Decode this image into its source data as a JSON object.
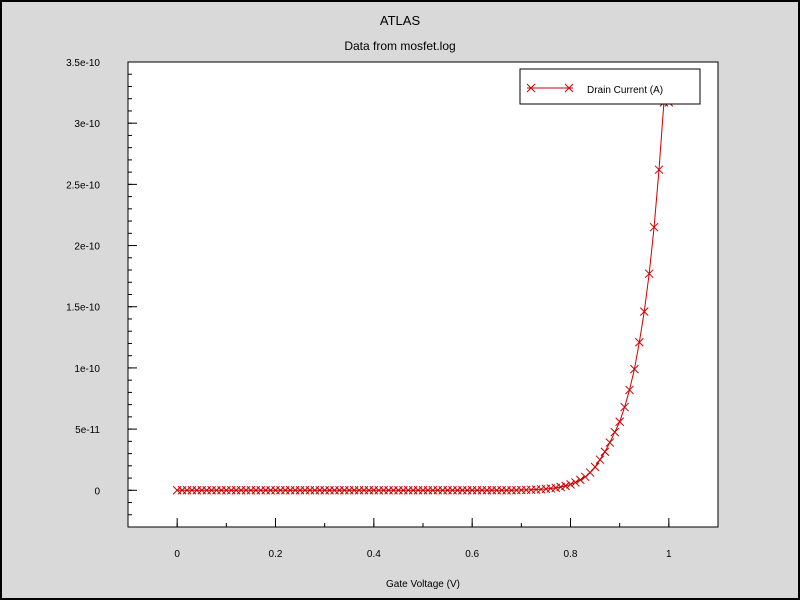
{
  "chart_data": {
    "type": "line",
    "title": "ATLAS",
    "subtitle": "Data from mosfet.log",
    "xlabel": "Gate Voltage (V)",
    "ylabel": "",
    "xlim": [
      -0.1,
      1.1
    ],
    "ylim": [
      -3e-11,
      3.5e-10
    ],
    "x_ticks": [
      0,
      0.2,
      0.4,
      0.6,
      0.8,
      1
    ],
    "x_tick_labels": [
      "0",
      "0.2",
      "0.4",
      "0.6",
      "0.8",
      "1"
    ],
    "y_ticks": [
      0,
      5e-11,
      1e-10,
      1.5e-10,
      2e-10,
      2.5e-10,
      3e-10,
      3.5e-10
    ],
    "y_tick_labels": [
      "0",
      "5e-11",
      "1e-10",
      "1.5e-10",
      "2e-10",
      "2.5e-10",
      "3e-10",
      "3.5e-10"
    ],
    "grid": false,
    "legend_position": "top-right",
    "series": [
      {
        "name": "Drain Current (A)",
        "color": "#cc0000",
        "marker": "x",
        "x": [
          0,
          0.01,
          0.02,
          0.03,
          0.04,
          0.05,
          0.06,
          0.07,
          0.08,
          0.09,
          0.1,
          0.11,
          0.12,
          0.13,
          0.14,
          0.15,
          0.16,
          0.17,
          0.18,
          0.19,
          0.2,
          0.21,
          0.22,
          0.23,
          0.24,
          0.25,
          0.26,
          0.27,
          0.28,
          0.29,
          0.3,
          0.31,
          0.32,
          0.33,
          0.34,
          0.35,
          0.36,
          0.37,
          0.38,
          0.39,
          0.4,
          0.41,
          0.42,
          0.43,
          0.44,
          0.45,
          0.46,
          0.47,
          0.48,
          0.49,
          0.5,
          0.51,
          0.52,
          0.53,
          0.54,
          0.55,
          0.56,
          0.57,
          0.58,
          0.59,
          0.6,
          0.61,
          0.62,
          0.63,
          0.64,
          0.65,
          0.66,
          0.67,
          0.68,
          0.69,
          0.7,
          0.71,
          0.72,
          0.73,
          0.74,
          0.75,
          0.76,
          0.77,
          0.78,
          0.79,
          0.8,
          0.81,
          0.82,
          0.83,
          0.84,
          0.85,
          0.86,
          0.87,
          0.88,
          0.89,
          0.9,
          0.91,
          0.92,
          0.93,
          0.94,
          0.95,
          0.96,
          0.97,
          0.98,
          0.99,
          1
        ],
        "y": [
          0,
          0,
          0,
          0,
          0,
          0,
          0,
          0,
          0,
          0,
          0,
          0,
          0,
          0,
          0,
          0,
          0,
          0,
          0,
          0,
          0,
          0,
          0,
          0,
          0,
          0,
          0,
          0,
          0,
          0,
          0,
          0,
          0,
          0,
          0,
          0,
          0,
          0,
          0,
          0,
          0,
          0,
          0,
          0,
          0,
          0,
          0,
          0,
          0,
          0,
          0,
          0,
          0,
          0,
          0,
          0,
          0,
          0,
          0,
          0,
          0,
          0,
          0,
          0,
          0,
          0,
          0,
          0,
          0,
          1e-13,
          2e-13,
          3e-13,
          4e-13,
          6e-13,
          8e-13,
          1.1e-12,
          1.5e-12,
          2e-12,
          2.7e-12,
          3.6e-12,
          4.8e-12,
          6.4e-12,
          8.5e-12,
          1.1e-11,
          1.45e-11,
          1.9e-11,
          2.5e-11,
          3.15e-11,
          3.9e-11,
          4.75e-11,
          5.6e-11,
          6.8e-11,
          8.2e-11,
          9.9e-11,
          1.21e-10,
          1.46e-10,
          1.77e-10,
          2.15e-10,
          2.62e-10,
          3.17e-10,
          3.17e-10
        ]
      }
    ]
  }
}
